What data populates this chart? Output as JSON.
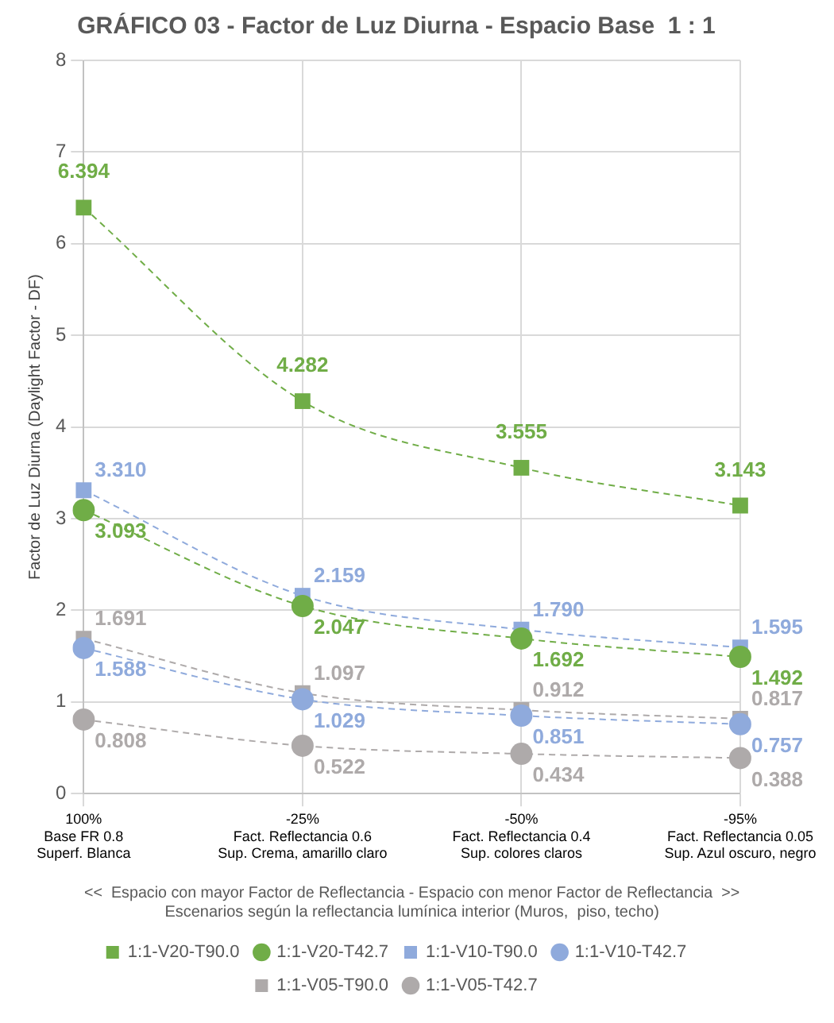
{
  "chart_data": {
    "type": "line",
    "title": "GRÁFICO 03 - Factor de Luz Diurna - Espacio Base  1 : 1",
    "ylabel": "Factor de Luz Diurna (Daylight Factor - DF)",
    "xlabel": "Escenarios según la reflectancia lumínica interior (Muros,  piso, techo)",
    "annotations": [
      "<<  Espacio con mayor Factor de Reflectancia - Espacio con menor Factor de Reflectancia  >>"
    ],
    "categories": [
      "100%\nBase FR 0.8\nSuperf. Blanca",
      "-25%\nFact. Reflectancia 0.6\nSup. Crema, amarillo claro",
      "-50%\nFact. Reflectancia 0.4\nSup. colores claros",
      "-95%\nFact. Reflectancia 0.05\nSup. Azul oscuro, negro"
    ],
    "series": [
      {
        "name": "1:1-V20-T90.0",
        "color": "#70ad47",
        "marker": "square",
        "values": [
          6.394,
          4.282,
          3.555,
          3.143
        ],
        "value_labels": [
          "6.394",
          "4.282",
          "3.555",
          "3.143"
        ]
      },
      {
        "name": "1:1-V20-T42.7",
        "color": "#70ad47",
        "marker": "circle",
        "values": [
          3.093,
          2.047,
          1.692,
          1.492
        ],
        "value_labels": [
          "3.093",
          "2.047",
          "1.692",
          "1.492"
        ]
      },
      {
        "name": "1:1-V10-T90.0",
        "color": "#8faadc",
        "marker": "square",
        "values": [
          3.31,
          2.159,
          1.79,
          1.595
        ],
        "value_labels": [
          "3.310",
          "2.159",
          "1.790",
          "1.595"
        ]
      },
      {
        "name": "1:1-V10-T42.7",
        "color": "#8faadc",
        "marker": "circle",
        "values": [
          1.588,
          1.029,
          0.851,
          0.757
        ],
        "value_labels": [
          "1.588",
          "1.029",
          "0.851",
          "0.757"
        ]
      },
      {
        "name": "1:1-V05-T90.0",
        "color": "#aeaaaa",
        "marker": "square",
        "values": [
          1.691,
          1.097,
          0.912,
          0.817
        ],
        "value_labels": [
          "1.691",
          "1.097",
          "0.912",
          "0.817"
        ]
      },
      {
        "name": "1:1-V05-T42.7",
        "color": "#aeaaaa",
        "marker": "circle",
        "values": [
          0.808,
          0.522,
          0.434,
          0.388
        ],
        "value_labels": [
          "0.808",
          "0.522",
          "0.434",
          "0.388"
        ]
      }
    ],
    "ylim": [
      0,
      8
    ],
    "yticks": [
      0,
      1,
      2,
      3,
      4,
      5,
      6,
      7,
      8
    ],
    "grid": true,
    "legend": "bottom",
    "line_style": "dashed"
  }
}
